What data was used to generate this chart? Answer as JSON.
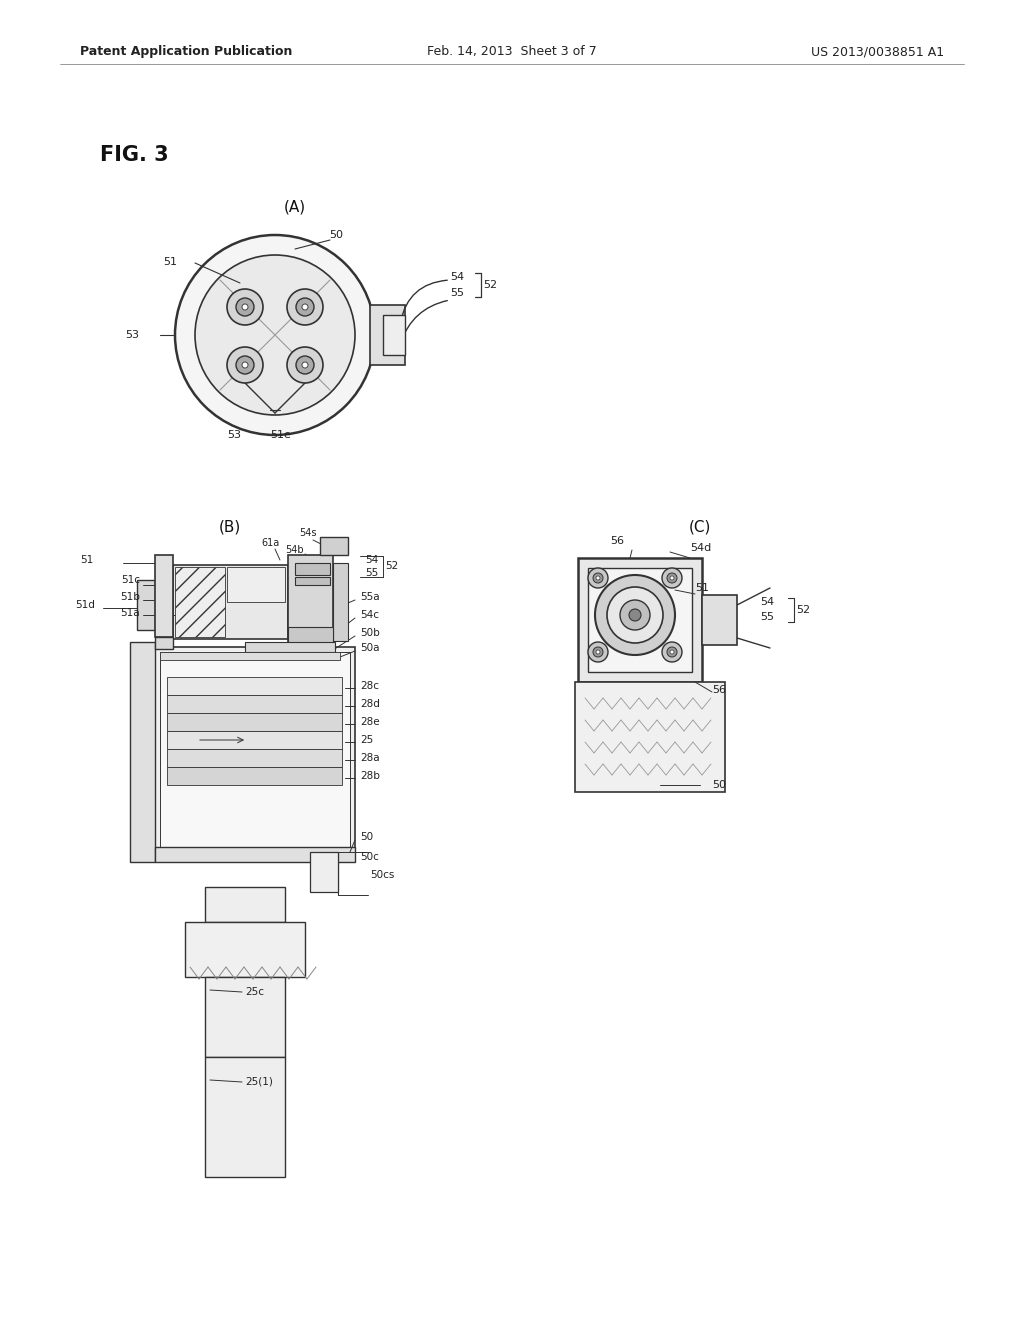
{
  "background_color": "#ffffff",
  "header_left": "Patent Application Publication",
  "header_center": "Feb. 14, 2013  Sheet 3 of 7",
  "header_right": "US 2013/0038851 A1",
  "fig_label": "FIG. 3",
  "sub_A_label": "(A)",
  "sub_B_label": "(B)",
  "sub_C_label": "(C)",
  "line_color": "#333333",
  "text_color": "#222222"
}
